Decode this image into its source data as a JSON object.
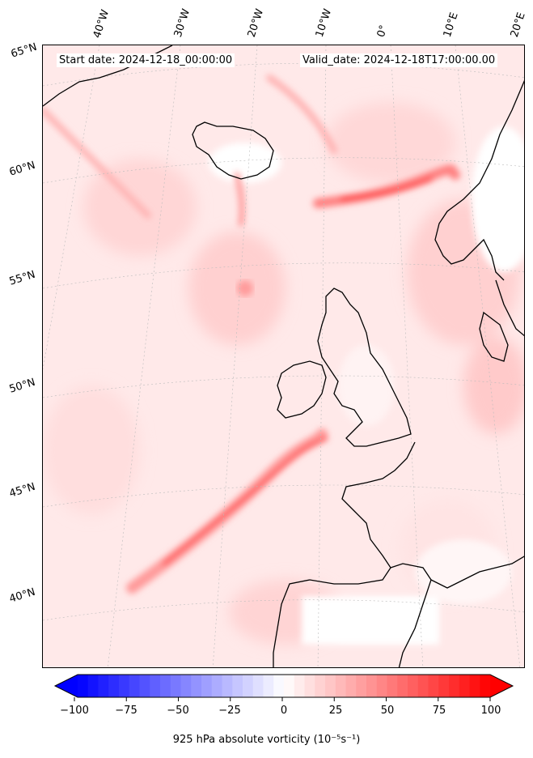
{
  "map": {
    "start_label": "Start date: 2024-12-18_00:00:00",
    "valid_label": "Valid_date: 2024-12-18T17:00:00.00",
    "lon_labels": [
      "40°W",
      "30°W",
      "20°W",
      "10°W",
      "0°",
      "10°E",
      "20°E"
    ],
    "lat_labels": [
      "65°N",
      "60°N",
      "55°N",
      "50°N",
      "45°N",
      "40°N"
    ]
  },
  "colorbar": {
    "title": "925 hPa absolute vorticity (10⁻⁵s⁻¹)",
    "ticks": [
      "−100",
      "−75",
      "−50",
      "−25",
      "0",
      "25",
      "50",
      "75",
      "100"
    ],
    "min": -100,
    "max": 100,
    "negative_color": "#0000ff",
    "positive_color": "#ff0000",
    "extend": "both"
  },
  "colors": {
    "coastline": "#000000",
    "grid": "#bbbbbb",
    "field_background": "#ffe9e9"
  }
}
